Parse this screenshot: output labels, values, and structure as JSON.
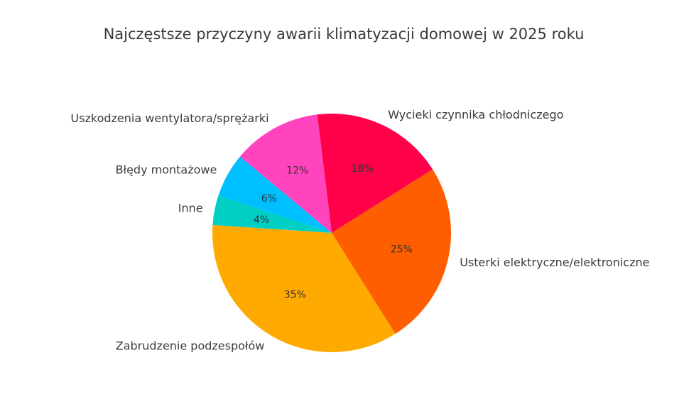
{
  "chart_data": {
    "type": "pie",
    "title": "Najczęstsze przyczyny awarii klimatyzacji domowej w 2025 roku",
    "start_angle_deg": 97,
    "direction": "clockwise",
    "slices": [
      {
        "label": "Wycieki czynnika chłodniczego",
        "value": 18,
        "display": "18%",
        "color": "#FF0049"
      },
      {
        "label": "Usterki elektryczne/elektroniczne",
        "value": 25,
        "display": "25%",
        "color": "#FF5E00"
      },
      {
        "label": "Zabrudzenie podzespołów",
        "value": 35,
        "display": "35%",
        "color": "#FFAA00"
      },
      {
        "label": "Inne",
        "value": 4,
        "display": "4%",
        "color": "#00CFC4"
      },
      {
        "label": "Błędy montażowe",
        "value": 6,
        "display": "6%",
        "color": "#00BFFF"
      },
      {
        "label": "Uszkodzenia wentylatora/sprężarki",
        "value": 12,
        "display": "12%",
        "color": "#FF44BD"
      }
    ]
  }
}
